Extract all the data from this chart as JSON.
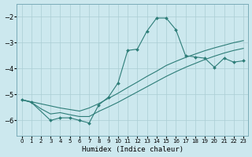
{
  "background_color": "#cce8ee",
  "grid_color": "#aacdd4",
  "line_color": "#2d7d78",
  "marker_color": "#2d7d78",
  "xlabel": "Humidex (Indice chaleur)",
  "xlim": [
    -0.5,
    23.5
  ],
  "ylim": [
    -6.6,
    -1.5
  ],
  "yticks": [
    -6,
    -5,
    -4,
    -3,
    -2
  ],
  "xticks": [
    0,
    1,
    2,
    3,
    4,
    5,
    6,
    7,
    8,
    9,
    10,
    11,
    12,
    13,
    14,
    15,
    16,
    17,
    18,
    19,
    20,
    21,
    22,
    23
  ],
  "series1_x": [
    0,
    1,
    3,
    4,
    5,
    6,
    7,
    8,
    9,
    10,
    11,
    12,
    13,
    14,
    15,
    16,
    17,
    18,
    19,
    20,
    21,
    22,
    23
  ],
  "series1_y": [
    -5.2,
    -5.3,
    -6.0,
    -5.9,
    -5.9,
    -6.0,
    -6.1,
    -5.4,
    -5.1,
    -4.55,
    -3.3,
    -3.25,
    -2.55,
    -2.05,
    -2.05,
    -2.5,
    -3.5,
    -3.55,
    -3.6,
    -3.95,
    -3.6,
    -3.75,
    -3.7
  ],
  "series2_x": [
    0,
    1,
    2,
    3,
    4,
    5,
    6,
    7,
    8,
    9,
    10,
    11,
    12,
    13,
    14,
    15,
    16,
    17,
    18,
    19,
    20,
    21,
    22,
    23
  ],
  "series2_y": [
    -5.2,
    -5.28,
    -5.36,
    -5.44,
    -5.52,
    -5.58,
    -5.64,
    -5.52,
    -5.35,
    -5.15,
    -4.95,
    -4.73,
    -4.52,
    -4.3,
    -4.1,
    -3.88,
    -3.72,
    -3.57,
    -3.44,
    -3.31,
    -3.2,
    -3.1,
    -3.0,
    -2.92
  ],
  "series3_x": [
    0,
    1,
    2,
    3,
    4,
    5,
    6,
    7,
    8,
    9,
    10,
    11,
    12,
    13,
    14,
    15,
    16,
    17,
    18,
    19,
    20,
    21,
    22,
    23
  ],
  "series3_y": [
    -5.2,
    -5.3,
    -5.55,
    -5.75,
    -5.7,
    -5.78,
    -5.85,
    -5.85,
    -5.65,
    -5.48,
    -5.3,
    -5.1,
    -4.9,
    -4.7,
    -4.5,
    -4.3,
    -4.12,
    -3.95,
    -3.8,
    -3.65,
    -3.52,
    -3.4,
    -3.3,
    -3.22
  ]
}
